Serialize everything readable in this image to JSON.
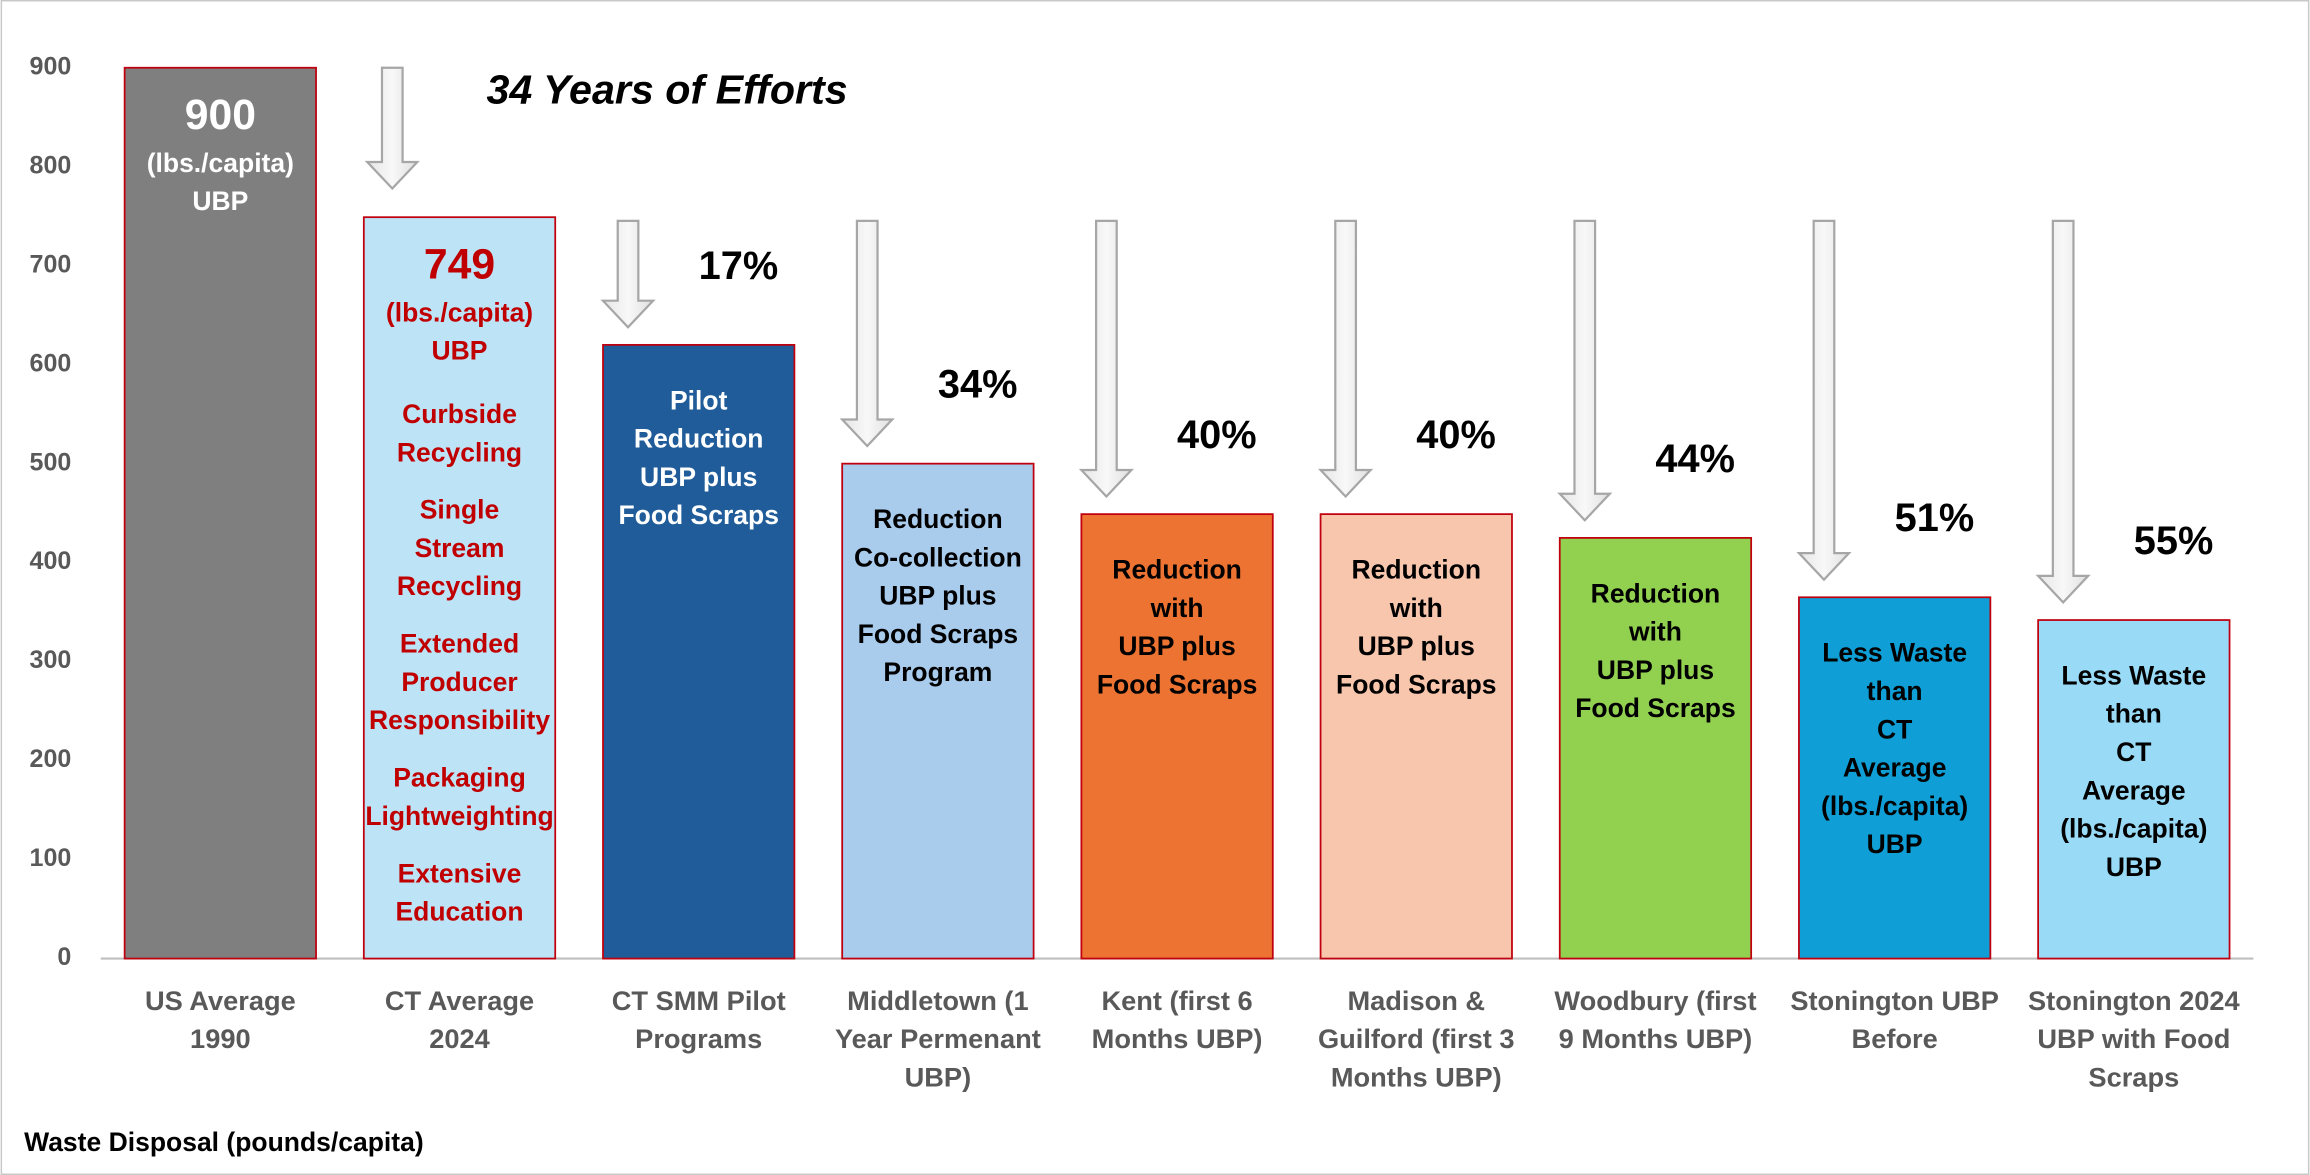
{
  "chart_data": {
    "type": "bar",
    "title": "34 Years of Efforts",
    "x_label": "Waste Disposal (pounds/capita)",
    "categories": [
      [
        "US Average",
        "1990"
      ],
      [
        "CT Average",
        "2024"
      ],
      [
        "CT SMM Pilot",
        "Programs"
      ],
      [
        "Middletown (1",
        "Year Permenant",
        "UBP)"
      ],
      [
        "Kent (first 6",
        "Months UBP)"
      ],
      [
        "Madison &",
        "Guilford (first 3",
        "Months UBP)"
      ],
      [
        "Woodbury  (first",
        "9 Months UBP)"
      ],
      [
        "Stonington UBP",
        "Before"
      ],
      [
        "Stonington 2024",
        "UBP with Food",
        "Scraps"
      ]
    ],
    "values": [
      900,
      749,
      620,
      500,
      449,
      449,
      425,
      365,
      342
    ],
    "colors": [
      "#7f7f7f",
      "#bde3f6",
      "#1f5c99",
      "#a9cbec",
      "#ec7331",
      "#f7c6ad",
      "#92d050",
      "#0f9ed5",
      "#99dbf7"
    ],
    "label_colors": [
      "#ffffff",
      "#c00000",
      "#ffffff",
      "#000000",
      "#000000",
      "#000000",
      "#000000",
      "#000000",
      "#000000"
    ],
    "bar_labels": [
      [
        "900",
        "(lbs./capita)",
        "UBP"
      ],
      [
        "749",
        "(lbs./capita)",
        "UBP"
      ],
      [
        "Pilot",
        "Reduction",
        "UBP plus",
        "Food Scraps"
      ],
      [
        "Reduction",
        "Co-collection",
        "UBP plus",
        "Food Scraps",
        "Program"
      ],
      [
        "Reduction",
        "with",
        "UBP plus",
        "Food Scraps"
      ],
      [
        "Reduction",
        "with",
        "UBP plus",
        "Food Scraps"
      ],
      [
        "Reduction",
        "with",
        "UBP plus",
        "Food Scraps"
      ],
      [
        "Less Waste",
        "than",
        "CT",
        "Average",
        "(lbs./capita)",
        "UBP"
      ],
      [
        "Less Waste",
        "than",
        "CT",
        "Average",
        "(lbs./capita)",
        "UBP"
      ]
    ],
    "ct_programs": [
      [
        "Curbside",
        "Recycling"
      ],
      [
        "Single",
        "Stream",
        "Recycling"
      ],
      [
        "Extended",
        "Producer",
        "Responsibility"
      ],
      [
        "Packaging",
        "Lightweighting"
      ],
      [
        "Extensive",
        "Education"
      ]
    ],
    "reductions": {
      "values": [
        17,
        34,
        40,
        40,
        44,
        51,
        55
      ],
      "value_labels": [
        "17%",
        "34%",
        "40%",
        "40%",
        "44%",
        "51%",
        "55%"
      ]
    },
    "ylim": [
      0,
      900
    ],
    "yticks": [
      0,
      100,
      200,
      300,
      400,
      500,
      600,
      700,
      800,
      900
    ]
  }
}
